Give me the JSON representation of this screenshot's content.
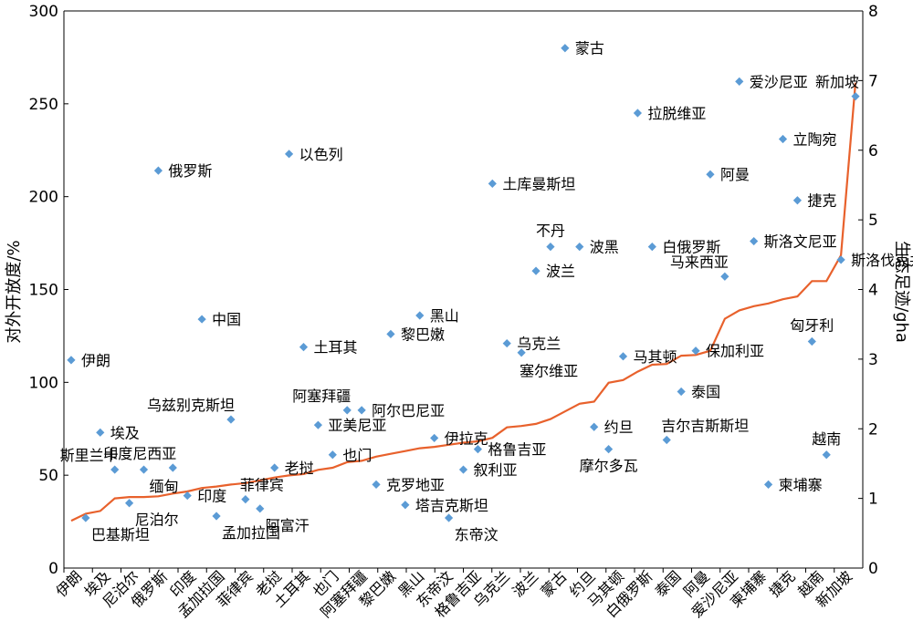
{
  "chart_data": {
    "type": "scatter",
    "ylabel_left": "对外开放度/%",
    "ylabel_right": "生态足迹/gha",
    "ylim_left": [
      0,
      300
    ],
    "ylim_right": [
      0,
      8
    ],
    "yticks_left": [
      "0",
      "50",
      "100",
      "150",
      "200",
      "250",
      "300"
    ],
    "yticks_right": [
      "0",
      "1",
      "2",
      "3",
      "4",
      "5",
      "6",
      "7",
      "8"
    ],
    "categories": [
      "伊朗",
      "埃及",
      "尼泊尔",
      "俄罗斯",
      "印度",
      "孟加拉国",
      "菲律宾",
      "老挝",
      "土耳其",
      "也门",
      "阿塞拜疆",
      "黎巴嫩",
      "黑山",
      "东帝汶",
      "格鲁吉亚",
      "乌克兰",
      "波兰",
      "蒙古",
      "约旦",
      "马其顿",
      "白俄罗斯",
      "泰国",
      "阿曼",
      "爱沙尼亚",
      "柬埔寨",
      "捷克",
      "越南",
      "新加坡"
    ],
    "openness_series": {
      "name": "对外开放度",
      "color": "#5b9bd5",
      "points": [
        {
          "name": "伊朗",
          "x": 0,
          "y": 112
        },
        {
          "name": "巴基斯坦",
          "x": 1,
          "y": 27
        },
        {
          "name": "埃及",
          "x": 2,
          "y": 73
        },
        {
          "name": "斯里兰卡",
          "x": 3,
          "y": 53
        },
        {
          "name": "尼泊尔",
          "x": 4,
          "y": 35
        },
        {
          "name": "缅甸",
          "x": 5,
          "y": 53
        },
        {
          "name": "俄罗斯",
          "x": 6,
          "y": 214
        },
        {
          "name": "印度尼西亚",
          "x": 7,
          "y": 54
        },
        {
          "name": "印度",
          "x": 8,
          "y": 39
        },
        {
          "name": "中国",
          "x": 9,
          "y": 134
        },
        {
          "name": "孟加拉国",
          "x": 10,
          "y": 28
        },
        {
          "name": "乌兹别克斯坦",
          "x": 11,
          "y": 80
        },
        {
          "name": "菲律宾",
          "x": 12,
          "y": 37
        },
        {
          "name": "阿富汗",
          "x": 13,
          "y": 32
        },
        {
          "name": "老挝",
          "x": 14,
          "y": 54
        },
        {
          "name": "以色列",
          "x": 15,
          "y": 223
        },
        {
          "name": "土耳其",
          "x": 16,
          "y": 119
        },
        {
          "name": "亚美尼亚",
          "x": 17,
          "y": 77
        },
        {
          "name": "也门",
          "x": 18,
          "y": 61
        },
        {
          "name": "阿塞拜疆",
          "x": 19,
          "y": 85
        },
        {
          "name": "阿尔巴尼亚",
          "x": 20,
          "y": 85
        },
        {
          "name": "克罗地亚",
          "x": 21,
          "y": 45
        },
        {
          "name": "黎巴嫩",
          "x": 22,
          "y": 126
        },
        {
          "name": "塔吉克斯坦",
          "x": 23,
          "y": 34
        },
        {
          "name": "黑山",
          "x": 24,
          "y": 136
        },
        {
          "name": "伊拉克",
          "x": 25,
          "y": 70
        },
        {
          "name": "东帝汶",
          "x": 26,
          "y": 27
        },
        {
          "name": "叙利亚",
          "x": 27,
          "y": 53
        },
        {
          "name": "格鲁吉亚",
          "x": 28,
          "y": 64
        },
        {
          "name": "土库曼斯坦",
          "x": 29,
          "y": 207
        },
        {
          "name": "乌克兰",
          "x": 30,
          "y": 121
        },
        {
          "name": "塞尔维亚",
          "x": 31,
          "y": 116
        },
        {
          "name": "波兰",
          "x": 32,
          "y": 160
        },
        {
          "name": "不丹",
          "x": 33,
          "y": 173
        },
        {
          "name": "蒙古",
          "x": 34,
          "y": 280
        },
        {
          "name": "波黑",
          "x": 35,
          "y": 173
        },
        {
          "name": "约旦",
          "x": 36,
          "y": 76
        },
        {
          "name": "摩尔多瓦",
          "x": 37,
          "y": 64
        },
        {
          "name": "马其顿",
          "x": 38,
          "y": 114
        },
        {
          "name": "拉脱维亚",
          "x": 39,
          "y": 245
        },
        {
          "name": "白俄罗斯",
          "x": 40,
          "y": 173
        },
        {
          "name": "吉尔吉斯斯坦",
          "x": 41,
          "y": 69
        },
        {
          "name": "泰国",
          "x": 42,
          "y": 95
        },
        {
          "name": "保加利亚",
          "x": 43,
          "y": 117
        },
        {
          "name": "阿曼",
          "x": 44,
          "y": 212
        },
        {
          "name": "马来西亚",
          "x": 45,
          "y": 157
        },
        {
          "name": "爱沙尼亚",
          "x": 46,
          "y": 262
        },
        {
          "name": "斯洛文尼亚",
          "x": 47,
          "y": 176
        },
        {
          "name": "柬埔寨",
          "x": 48,
          "y": 45
        },
        {
          "name": "立陶宛",
          "x": 49,
          "y": 231
        },
        {
          "name": "捷克",
          "x": 50,
          "y": 198
        },
        {
          "name": "匈牙利",
          "x": 51,
          "y": 122
        },
        {
          "name": "越南",
          "x": 52,
          "y": 61
        },
        {
          "name": "斯洛伐克共和国",
          "x": 53,
          "y": 166
        },
        {
          "name": "新加坡",
          "x": 54,
          "y": 254
        }
      ]
    },
    "footprint_series": {
      "name": "生态足迹",
      "color": "#e8612c",
      "points": [
        {
          "x": 0,
          "y": 0.68
        },
        {
          "x": 1,
          "y": 0.78
        },
        {
          "x": 2,
          "y": 0.82
        },
        {
          "x": 3,
          "y": 1.0
        },
        {
          "x": 4,
          "y": 1.02
        },
        {
          "x": 5,
          "y": 1.02
        },
        {
          "x": 6,
          "y": 1.03
        },
        {
          "x": 7,
          "y": 1.07
        },
        {
          "x": 8,
          "y": 1.1
        },
        {
          "x": 9,
          "y": 1.15
        },
        {
          "x": 10,
          "y": 1.17
        },
        {
          "x": 11,
          "y": 1.2
        },
        {
          "x": 12,
          "y": 1.22
        },
        {
          "x": 13,
          "y": 1.26
        },
        {
          "x": 14,
          "y": 1.3
        },
        {
          "x": 15,
          "y": 1.33
        },
        {
          "x": 16,
          "y": 1.35
        },
        {
          "x": 17,
          "y": 1.41
        },
        {
          "x": 18,
          "y": 1.44
        },
        {
          "x": 19,
          "y": 1.52
        },
        {
          "x": 20,
          "y": 1.54
        },
        {
          "x": 21,
          "y": 1.6
        },
        {
          "x": 22,
          "y": 1.64
        },
        {
          "x": 23,
          "y": 1.68
        },
        {
          "x": 24,
          "y": 1.72
        },
        {
          "x": 25,
          "y": 1.74
        },
        {
          "x": 26,
          "y": 1.77
        },
        {
          "x": 27,
          "y": 1.8
        },
        {
          "x": 28,
          "y": 1.82
        },
        {
          "x": 29,
          "y": 1.87
        },
        {
          "x": 30,
          "y": 2.02
        },
        {
          "x": 31,
          "y": 2.04
        },
        {
          "x": 32,
          "y": 2.07
        },
        {
          "x": 33,
          "y": 2.14
        },
        {
          "x": 34,
          "y": 2.25
        },
        {
          "x": 35,
          "y": 2.36
        },
        {
          "x": 36,
          "y": 2.39
        },
        {
          "x": 37,
          "y": 2.66
        },
        {
          "x": 38,
          "y": 2.7
        },
        {
          "x": 39,
          "y": 2.82
        },
        {
          "x": 40,
          "y": 2.92
        },
        {
          "x": 41,
          "y": 2.93
        },
        {
          "x": 42,
          "y": 3.05
        },
        {
          "x": 43,
          "y": 3.06
        },
        {
          "x": 44,
          "y": 3.12
        },
        {
          "x": 45,
          "y": 3.58
        },
        {
          "x": 46,
          "y": 3.7
        },
        {
          "x": 47,
          "y": 3.76
        },
        {
          "x": 48,
          "y": 3.8
        },
        {
          "x": 49,
          "y": 3.86
        },
        {
          "x": 50,
          "y": 3.9
        },
        {
          "x": 51,
          "y": 4.12
        },
        {
          "x": 52,
          "y": 4.12
        },
        {
          "x": 53,
          "y": 4.49
        },
        {
          "x": 54,
          "y": 6.97
        }
      ]
    }
  }
}
